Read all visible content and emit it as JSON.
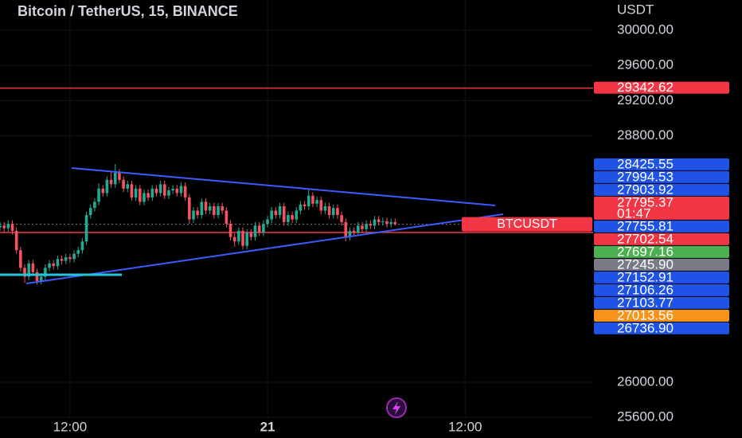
{
  "chart_data": {
    "type": "candlestick",
    "title": "Bitcoin / TetherUS, 15, BINANCE",
    "y_axis_label": "USDT",
    "up_color": "#22ab94",
    "down_color": "#f7525f",
    "grid": true,
    "xlim": [
      0,
      144.1
    ],
    "ylim": [
      25366,
      30344
    ],
    "xticks": [
      {
        "value": 17,
        "label": "12:00"
      },
      {
        "value": 65,
        "label": "21"
      },
      {
        "value": 113,
        "label": "12:00"
      }
    ],
    "yticks": [
      {
        "value": 30000,
        "label": "30000.00"
      },
      {
        "value": 29600,
        "label": "29600.00"
      },
      {
        "value": 29200,
        "label": "29200.00"
      },
      {
        "value": 28800,
        "label": "28800.00"
      },
      {
        "value": 26000,
        "label": "26000.00"
      },
      {
        "value": 25600,
        "label": "25600.00"
      }
    ],
    "open": [
      27760,
      27780,
      27750,
      27800,
      27720,
      27500,
      27300,
      27200,
      27350,
      27250,
      27150,
      27200,
      27300,
      27350,
      27320,
      27400,
      27380,
      27420,
      27400,
      27460,
      27500,
      27600,
      27900,
      27980,
      28050,
      28200,
      28150,
      28300,
      28250,
      28380,
      28300,
      28200,
      28250,
      28100,
      28200,
      28050,
      28150,
      28100,
      28200,
      28150,
      28250,
      28120,
      28180,
      28200,
      28150,
      28230,
      28100,
      27850,
      27950,
      27900,
      28050,
      27950,
      28000,
      27900,
      28000,
      27950,
      27800,
      27650,
      27600,
      27720,
      27550,
      27700,
      27650,
      27780,
      27700,
      27800,
      27850,
      27950,
      27900,
      28000,
      27820,
      27900,
      27850,
      27950,
      28020,
      28000,
      28120,
      28030,
      28070,
      27950,
      28000,
      27900,
      27980,
      27900,
      27820,
      27650,
      27720,
      27700,
      27780,
      27740,
      27800,
      27780,
      27850,
      27820,
      27830,
      27800,
      27820
    ],
    "high": [
      27820,
      27820,
      27840,
      27840,
      27760,
      27540,
      27340,
      27390,
      27390,
      27290,
      27240,
      27340,
      27390,
      27390,
      27440,
      27440,
      27460,
      27460,
      27500,
      27540,
      27640,
      27940,
      28020,
      28090,
      28260,
      28240,
      28340,
      28400,
      28480,
      28420,
      28340,
      28290,
      28290,
      28240,
      28240,
      28190,
      28190,
      28240,
      28240,
      28290,
      28290,
      28220,
      28240,
      28240,
      28270,
      28270,
      28140,
      27990,
      27990,
      28090,
      28090,
      28040,
      28040,
      28040,
      28040,
      27990,
      27840,
      27690,
      27760,
      27760,
      27740,
      27740,
      27820,
      27820,
      27840,
      27890,
      27990,
      27990,
      28040,
      28040,
      27940,
      27940,
      27990,
      28060,
      28060,
      28190,
      28160,
      28110,
      28110,
      28040,
      28040,
      28020,
      28020,
      27940,
      27860,
      27760,
      27760,
      27820,
      27820,
      27840,
      27840,
      27890,
      27890,
      27870,
      27870,
      27860,
      27860
    ],
    "low": [
      27720,
      27710,
      27710,
      27680,
      27460,
      27260,
      27130,
      27160,
      27210,
      27110,
      27110,
      27160,
      27260,
      27280,
      27280,
      27340,
      27340,
      27360,
      27360,
      27420,
      27460,
      27560,
      27860,
      27940,
      28010,
      28110,
      28110,
      28210,
      28210,
      28260,
      28160,
      28160,
      28060,
      28060,
      28010,
      28010,
      28060,
      28060,
      28110,
      28110,
      28080,
      28080,
      28140,
      28110,
      28110,
      28060,
      27800,
      27810,
      27860,
      27860,
      27910,
      27910,
      27860,
      27860,
      27910,
      27760,
      27610,
      27540,
      27560,
      27510,
      27510,
      27610,
      27610,
      27660,
      27660,
      27760,
      27810,
      27860,
      27860,
      27780,
      27780,
      27810,
      27810,
      27910,
      27960,
      27960,
      27990,
      27990,
      27910,
      27910,
      27860,
      27860,
      27860,
      27780,
      27600,
      27610,
      27660,
      27660,
      27700,
      27700,
      27740,
      27740,
      27780,
      27780,
      27760,
      27760,
      27780
    ],
    "close": [
      27780,
      27750,
      27800,
      27720,
      27500,
      27300,
      27200,
      27350,
      27250,
      27150,
      27200,
      27300,
      27350,
      27320,
      27400,
      27380,
      27420,
      27400,
      27460,
      27500,
      27600,
      27900,
      27980,
      28050,
      28200,
      28150,
      28300,
      28250,
      28380,
      28300,
      28200,
      28250,
      28100,
      28200,
      28050,
      28150,
      28100,
      28200,
      28150,
      28250,
      28120,
      28180,
      28200,
      28150,
      28230,
      28100,
      27850,
      27950,
      27900,
      28050,
      27950,
      28000,
      27900,
      28000,
      27950,
      27800,
      27650,
      27600,
      27720,
      27550,
      27700,
      27650,
      27780,
      27700,
      27800,
      27850,
      27950,
      27900,
      28000,
      27820,
      27900,
      27850,
      27950,
      28020,
      28000,
      28120,
      28030,
      28070,
      27950,
      28000,
      27900,
      27980,
      27900,
      27820,
      27650,
      27720,
      27700,
      27780,
      27740,
      27800,
      27780,
      27850,
      27820,
      27830,
      27800,
      27820,
      27795.37
    ],
    "symbol_label": "BTCUSDT",
    "countdown": "01:47",
    "price_labels": [
      {
        "value": 29342.62,
        "label": "29342.62",
        "color": "#f23645",
        "line": "solid"
      },
      {
        "value": 28425.55,
        "label": "28425.55",
        "color": "#1e53e5"
      },
      {
        "value": 27994.53,
        "label": "27994.53",
        "color": "#1e53e5"
      },
      {
        "value": 27903.92,
        "label": "27903.92",
        "color": "#1e53e5"
      },
      {
        "value": 27795.37,
        "label": "27795.37",
        "color": "#f23645",
        "line": "dotted",
        "current": true
      },
      {
        "value": 27755.81,
        "label": "27755.81",
        "color": "#1e53e5"
      },
      {
        "value": 27702.54,
        "label": "27702.54",
        "color": "#f23645",
        "line": "solid"
      },
      {
        "value": 27697.16,
        "label": "27697.16",
        "color": "#4caf50"
      },
      {
        "value": 27245.9,
        "label": "27245.90",
        "color": "#787b86"
      },
      {
        "value": 27152.91,
        "label": "27152.91",
        "color": "#1e53e5"
      },
      {
        "value": 27106.26,
        "label": "27106.26",
        "color": "#1e53e5"
      },
      {
        "value": 27103.77,
        "label": "27103.77",
        "color": "#1e53e5"
      },
      {
        "value": 27013.56,
        "label": "27013.56",
        "color": "#f7931a"
      },
      {
        "value": 26736.9,
        "label": "26736.90",
        "color": "#1e53e5"
      }
    ]
  }
}
